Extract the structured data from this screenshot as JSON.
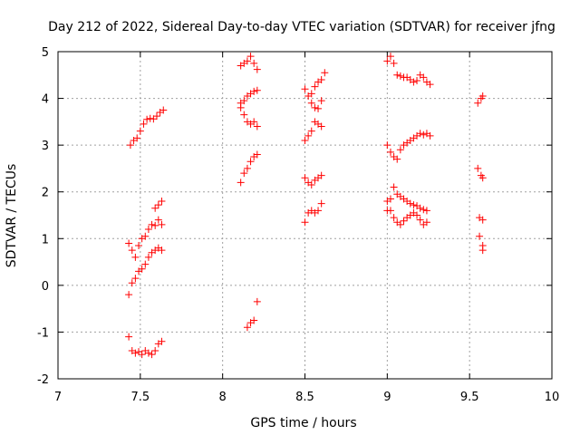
{
  "chart_data": {
    "type": "scatter",
    "title": "Day 212 of 2022, Sidereal Day-to-day VTEC variation (SDTVAR) for receiver jfng",
    "xlabel": "GPS time / hours",
    "ylabel": "SDTVAR / TECUs",
    "xlim": [
      7,
      10
    ],
    "ylim": [
      -2,
      5
    ],
    "xticks": [
      7,
      7.5,
      8,
      8.5,
      9,
      9.5,
      10
    ],
    "yticks": [
      -2,
      -1,
      0,
      1,
      2,
      3,
      4,
      5
    ],
    "xtick_labels": [
      "7",
      "7.5",
      "8",
      "8.5",
      "9",
      "9.5",
      "10"
    ],
    "ytick_labels": [
      "-2",
      "-1",
      "0",
      "1",
      "2",
      "3",
      "4",
      "5"
    ],
    "grid": true,
    "marker": "+",
    "series": [
      {
        "name": "SDTVAR",
        "color": "#ff0000",
        "segments": [
          [
            [
              7.44,
              3.0
            ],
            [
              7.46,
              3.1
            ],
            [
              7.48,
              3.15
            ],
            [
              7.5,
              3.3
            ],
            [
              7.52,
              3.45
            ],
            [
              7.54,
              3.55
            ],
            [
              7.56,
              3.57
            ],
            [
              7.58,
              3.56
            ],
            [
              7.6,
              3.62
            ],
            [
              7.62,
              3.7
            ],
            [
              7.64,
              3.75
            ]
          ],
          [
            [
              7.43,
              -0.2
            ],
            [
              7.45,
              0.05
            ],
            [
              7.47,
              0.15
            ],
            [
              7.49,
              0.3
            ],
            [
              7.51,
              0.35
            ],
            [
              7.53,
              0.45
            ],
            [
              7.55,
              0.6
            ],
            [
              7.57,
              0.7
            ],
            [
              7.59,
              0.75
            ],
            [
              7.61,
              0.8
            ],
            [
              7.63,
              0.75
            ]
          ],
          [
            [
              7.43,
              0.9
            ],
            [
              7.45,
              0.75
            ],
            [
              7.47,
              0.6
            ],
            [
              7.49,
              0.85
            ],
            [
              7.51,
              1.0
            ],
            [
              7.53,
              1.05
            ],
            [
              7.55,
              1.2
            ],
            [
              7.57,
              1.3
            ],
            [
              7.59,
              1.28
            ],
            [
              7.61,
              1.4
            ],
            [
              7.63,
              1.3
            ]
          ],
          [
            [
              7.59,
              1.65
            ],
            [
              7.61,
              1.72
            ],
            [
              7.63,
              1.8
            ]
          ],
          [
            [
              7.43,
              -1.1
            ],
            [
              7.45,
              -1.4
            ],
            [
              7.47,
              -1.45
            ],
            [
              7.49,
              -1.42
            ],
            [
              7.51,
              -1.48
            ],
            [
              7.53,
              -1.4
            ],
            [
              7.55,
              -1.45
            ],
            [
              7.57,
              -1.48
            ],
            [
              7.59,
              -1.4
            ],
            [
              7.61,
              -1.25
            ],
            [
              7.63,
              -1.2
            ]
          ],
          [
            [
              8.11,
              2.2
            ],
            [
              8.13,
              2.4
            ],
            [
              8.15,
              2.5
            ],
            [
              8.17,
              2.65
            ],
            [
              8.19,
              2.75
            ],
            [
              8.21,
              2.8
            ]
          ],
          [
            [
              8.11,
              3.8
            ],
            [
              8.13,
              3.95
            ],
            [
              8.15,
              4.05
            ],
            [
              8.17,
              4.1
            ],
            [
              8.19,
              4.15
            ],
            [
              8.21,
              4.17
            ]
          ],
          [
            [
              8.11,
              3.9
            ],
            [
              8.13,
              3.65
            ],
            [
              8.15,
              3.5
            ],
            [
              8.17,
              3.45
            ],
            [
              8.19,
              3.5
            ],
            [
              8.21,
              3.4
            ]
          ],
          [
            [
              8.11,
              4.7
            ],
            [
              8.13,
              4.75
            ],
            [
              8.15,
              4.8
            ],
            [
              8.17,
              4.9
            ],
            [
              8.19,
              4.75
            ],
            [
              8.21,
              4.62
            ]
          ],
          [
            [
              8.15,
              -0.9
            ],
            [
              8.17,
              -0.8
            ],
            [
              8.19,
              -0.75
            ],
            [
              8.21,
              -0.35
            ]
          ],
          [
            [
              8.5,
              4.2
            ],
            [
              8.52,
              4.05
            ],
            [
              8.54,
              3.9
            ],
            [
              8.56,
              3.8
            ],
            [
              8.58,
              3.78
            ],
            [
              8.6,
              3.95
            ]
          ],
          [
            [
              8.5,
              3.1
            ],
            [
              8.52,
              3.2
            ],
            [
              8.54,
              3.3
            ],
            [
              8.56,
              3.5
            ],
            [
              8.58,
              3.45
            ],
            [
              8.6,
              3.4
            ]
          ],
          [
            [
              8.54,
              4.1
            ],
            [
              8.56,
              4.25
            ],
            [
              8.58,
              4.35
            ],
            [
              8.6,
              4.4
            ],
            [
              8.62,
              4.55
            ]
          ],
          [
            [
              8.5,
              2.3
            ],
            [
              8.52,
              2.2
            ],
            [
              8.54,
              2.15
            ],
            [
              8.56,
              2.25
            ],
            [
              8.58,
              2.3
            ],
            [
              8.6,
              2.35
            ]
          ],
          [
            [
              8.5,
              1.35
            ],
            [
              8.52,
              1.55
            ],
            [
              8.54,
              1.6
            ],
            [
              8.56,
              1.55
            ],
            [
              8.58,
              1.6
            ],
            [
              8.6,
              1.75
            ]
          ],
          [
            [
              9.0,
              4.8
            ],
            [
              9.02,
              4.9
            ],
            [
              9.04,
              4.75
            ],
            [
              9.06,
              4.5
            ],
            [
              9.08,
              4.48
            ],
            [
              9.1,
              4.45
            ],
            [
              9.12,
              4.45
            ],
            [
              9.14,
              4.4
            ],
            [
              9.16,
              4.35
            ],
            [
              9.18,
              4.38
            ],
            [
              9.2,
              4.5
            ],
            [
              9.22,
              4.45
            ],
            [
              9.24,
              4.35
            ],
            [
              9.26,
              4.3
            ]
          ],
          [
            [
              9.0,
              3.0
            ],
            [
              9.02,
              2.85
            ],
            [
              9.04,
              2.75
            ],
            [
              9.06,
              2.7
            ],
            [
              9.08,
              2.9
            ],
            [
              9.1,
              3.0
            ],
            [
              9.12,
              3.05
            ],
            [
              9.14,
              3.1
            ],
            [
              9.16,
              3.15
            ],
            [
              9.18,
              3.2
            ],
            [
              9.2,
              3.25
            ],
            [
              9.22,
              3.22
            ],
            [
              9.24,
              3.25
            ],
            [
              9.26,
              3.2
            ]
          ],
          [
            [
              9.0,
              1.6
            ],
            [
              9.02,
              1.85
            ],
            [
              9.04,
              2.1
            ],
            [
              9.06,
              1.95
            ],
            [
              9.08,
              1.9
            ],
            [
              9.1,
              1.85
            ],
            [
              9.12,
              1.8
            ],
            [
              9.14,
              1.75
            ],
            [
              9.16,
              1.72
            ],
            [
              9.18,
              1.7
            ],
            [
              9.2,
              1.65
            ],
            [
              9.22,
              1.62
            ],
            [
              9.24,
              1.6
            ]
          ],
          [
            [
              9.0,
              1.8
            ],
            [
              9.02,
              1.6
            ],
            [
              9.04,
              1.45
            ],
            [
              9.06,
              1.35
            ],
            [
              9.08,
              1.3
            ],
            [
              9.1,
              1.38
            ],
            [
              9.12,
              1.45
            ],
            [
              9.14,
              1.5
            ],
            [
              9.16,
              1.55
            ],
            [
              9.18,
              1.5
            ],
            [
              9.2,
              1.4
            ],
            [
              9.22,
              1.3
            ],
            [
              9.24,
              1.35
            ]
          ],
          [
            [
              9.55,
              2.5
            ],
            [
              9.57,
              2.35
            ],
            [
              9.58,
              2.3
            ]
          ],
          [
            [
              9.56,
              1.45
            ],
            [
              9.58,
              1.4
            ]
          ],
          [
            [
              9.55,
              3.9
            ],
            [
              9.57,
              4.0
            ],
            [
              9.58,
              4.05
            ]
          ],
          [
            [
              9.56,
              1.05
            ],
            [
              9.58,
              0.85
            ],
            [
              9.58,
              0.75
            ]
          ]
        ]
      }
    ]
  }
}
